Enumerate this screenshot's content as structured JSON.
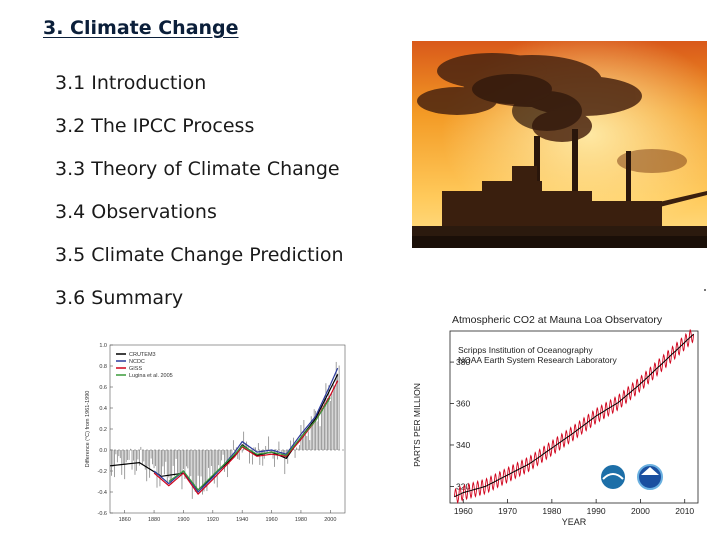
{
  "slide": {
    "title": "3. Climate Change",
    "sections": [
      "3.1  Introduction",
      "3.2 The IPCC Process",
      "3.3 Theory of Climate Change",
      "3.4 Observations",
      "3.5 Climate Change Prediction",
      "3.6 Summary"
    ]
  },
  "colors": {
    "title": "#0b1f3a",
    "co2_line": "#d0021b",
    "sky_top": "#f59a1f",
    "sky_bottom": "#ffd36a"
  },
  "chart_data": [
    {
      "type": "line",
      "title": "Atmospheric CO2 at Mauna Loa Observatory",
      "subtitle_lines": [
        "Scripps Institution of Oceanography",
        "NOAA Earth System Research Laboratory"
      ],
      "xlabel": "YEAR",
      "ylabel": "PARTS PER MILLION",
      "xlim": [
        1957,
        2013
      ],
      "ylim": [
        312,
        395
      ],
      "x_ticks": [
        1960,
        1970,
        1980,
        1990,
        2000,
        2010
      ],
      "y_ticks": [
        320,
        340,
        360,
        380
      ],
      "x": [
        1958,
        1960,
        1965,
        1970,
        1975,
        1980,
        1985,
        1990,
        1995,
        2000,
        2005,
        2010,
        2012
      ],
      "y": [
        315,
        317,
        320,
        325.5,
        331,
        338.5,
        346,
        354,
        360.5,
        369.5,
        379.5,
        389.5,
        393.5
      ],
      "seasonal_amplitude": 3.5,
      "grid": false
    },
    {
      "type": "line",
      "ylabel": "Difference (°C) from 1961-1990",
      "xlim": [
        1850,
        2010
      ],
      "ylim": [
        -0.6,
        1.0
      ],
      "x_ticks": [
        1860,
        1880,
        1900,
        1920,
        1940,
        1960,
        1980,
        2000
      ],
      "y_ticks": [
        -0.6,
        -0.4,
        -0.2,
        0.0,
        0.2,
        0.4,
        0.6,
        0.8,
        1.0
      ],
      "legend": [
        "CRUTEM3",
        "NCDC",
        "GISS",
        "Lugina et al. 2005"
      ],
      "legend_position": "top-left",
      "series_colors": [
        "#000000",
        "#2b3a9c",
        "#d0021b",
        "#3a9a3a"
      ],
      "series": [
        {
          "name": "CRUTEM3",
          "x": [
            1850,
            1870,
            1885,
            1900,
            1910,
            1920,
            1935,
            1940,
            1950,
            1960,
            1970,
            1980,
            1990,
            2000,
            2005
          ],
          "values": [
            -0.15,
            -0.12,
            -0.25,
            -0.22,
            -0.38,
            -0.25,
            -0.05,
            0.05,
            -0.05,
            -0.02,
            -0.08,
            0.12,
            0.3,
            0.58,
            0.72
          ]
        },
        {
          "name": "NCDC",
          "x": [
            1880,
            1890,
            1900,
            1910,
            1920,
            1935,
            1940,
            1950,
            1960,
            1970,
            1980,
            1990,
            2000,
            2005
          ],
          "values": [
            -0.2,
            -0.32,
            -0.2,
            -0.4,
            -0.26,
            -0.02,
            0.08,
            -0.02,
            0.0,
            -0.04,
            0.15,
            0.32,
            0.62,
            0.78
          ]
        },
        {
          "name": "GISS",
          "x": [
            1880,
            1890,
            1900,
            1910,
            1920,
            1935,
            1940,
            1950,
            1960,
            1970,
            1980,
            1990,
            2000,
            2005
          ],
          "values": [
            -0.22,
            -0.34,
            -0.22,
            -0.42,
            -0.28,
            -0.06,
            0.03,
            -0.06,
            -0.04,
            -0.06,
            0.1,
            0.28,
            0.52,
            0.66
          ]
        },
        {
          "name": "Lugina et al. 2005",
          "x": [
            1890,
            1900,
            1910,
            1920,
            1935,
            1940,
            1950,
            1960,
            1970,
            1980,
            1990,
            2000
          ],
          "values": [
            -0.3,
            -0.2,
            -0.38,
            -0.24,
            -0.04,
            0.04,
            -0.04,
            -0.02,
            -0.05,
            0.12,
            0.28,
            0.5
          ]
        }
      ]
    }
  ]
}
